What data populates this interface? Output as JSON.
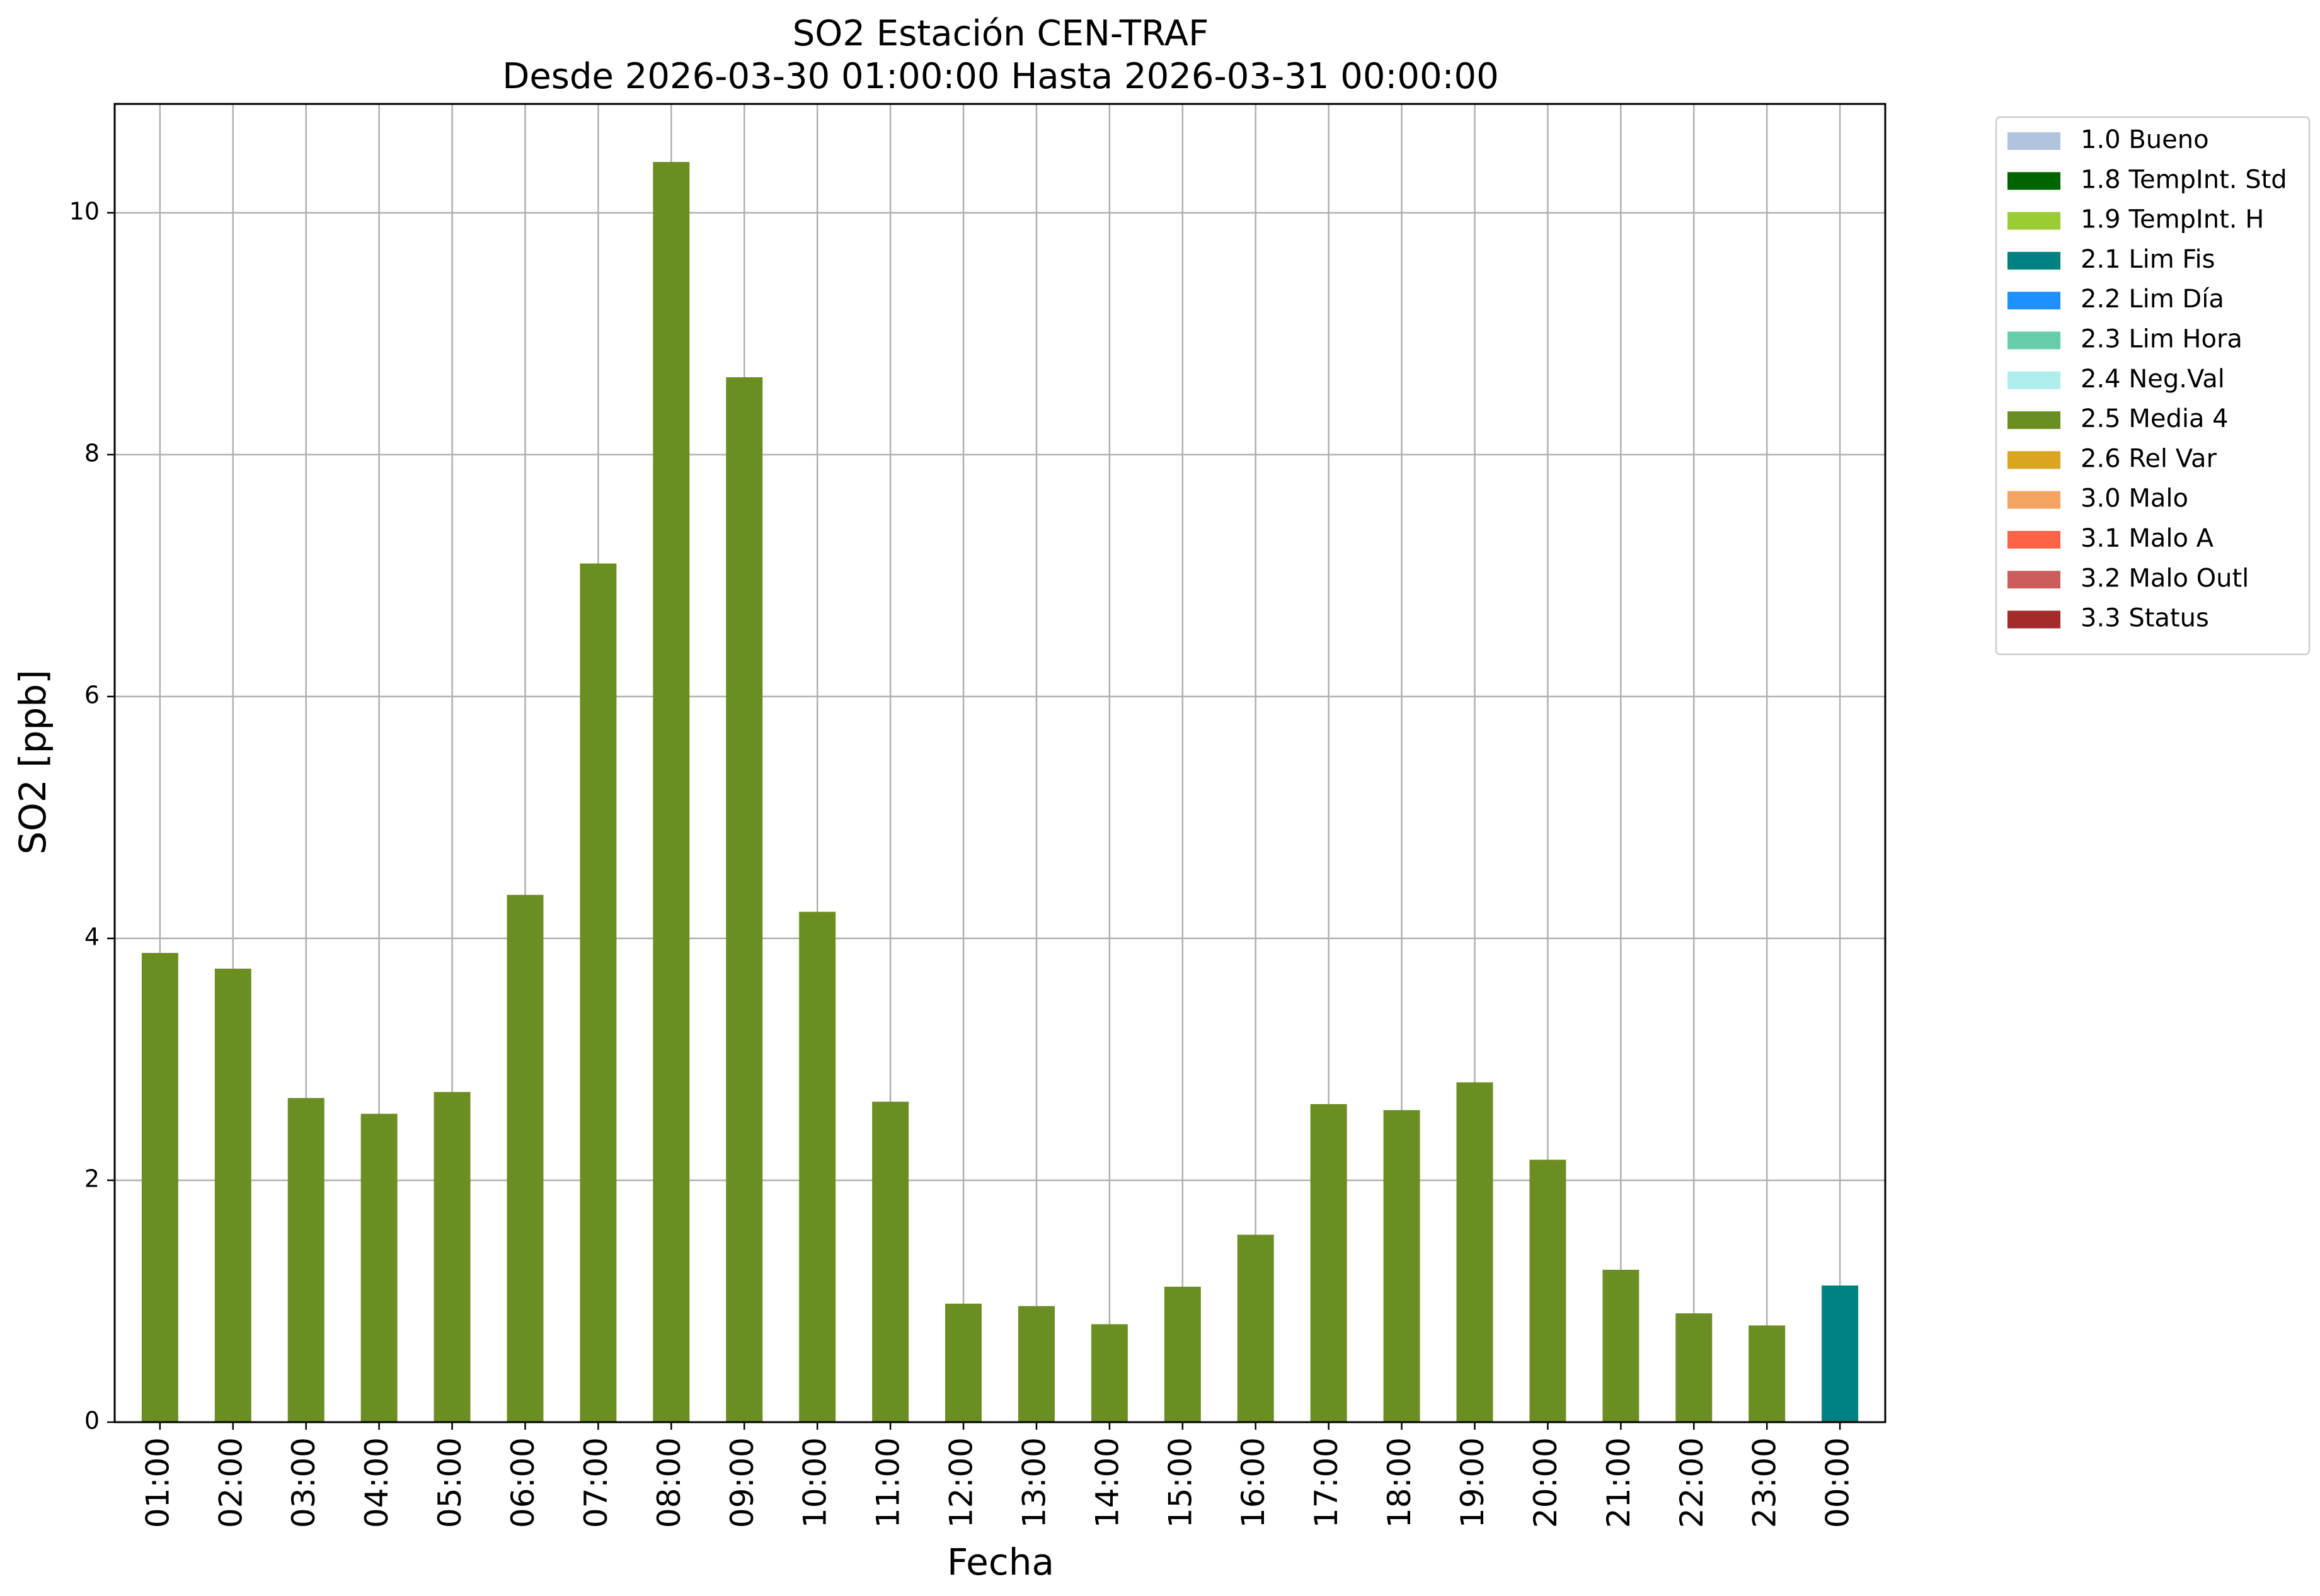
{
  "chart_data": {
    "type": "bar",
    "title": [
      "SO2 Estación CEN-TRAF",
      "Desde 2026-03-30 01:00:00 Hasta 2026-03-31 00:00:00"
    ],
    "xlabel": "Fecha",
    "ylabel": "SO2 [ppb]",
    "ylim": [
      0,
      10.9
    ],
    "yticks": [
      0,
      2,
      4,
      6,
      8,
      10
    ],
    "grid": true,
    "legend_position": "outside-top-right",
    "categories": [
      "01:00",
      "02:00",
      "03:00",
      "04:00",
      "05:00",
      "06:00",
      "07:00",
      "08:00",
      "09:00",
      "10:00",
      "11:00",
      "12:00",
      "13:00",
      "14:00",
      "15:00",
      "16:00",
      "17:00",
      "18:00",
      "19:00",
      "20:00",
      "21:00",
      "22:00",
      "23:00",
      "00:00"
    ],
    "values": [
      3.88,
      3.75,
      2.68,
      2.55,
      2.73,
      4.36,
      7.1,
      10.42,
      8.64,
      4.22,
      2.65,
      0.98,
      0.96,
      0.81,
      1.12,
      1.55,
      2.63,
      2.58,
      2.81,
      2.17,
      1.26,
      0.9,
      0.8,
      1.13
    ],
    "bar_flags": [
      "2.5 Media 4",
      "2.5 Media 4",
      "2.5 Media 4",
      "2.5 Media 4",
      "2.5 Media 4",
      "2.5 Media 4",
      "2.5 Media 4",
      "2.5 Media 4",
      "2.5 Media 4",
      "2.5 Media 4",
      "2.5 Media 4",
      "2.5 Media 4",
      "2.5 Media 4",
      "2.5 Media 4",
      "2.5 Media 4",
      "2.5 Media 4",
      "2.5 Media 4",
      "2.5 Media 4",
      "2.5 Media 4",
      "2.5 Media 4",
      "2.5 Media 4",
      "2.5 Media 4",
      "2.5 Media 4",
      "2.1 Lim Fis"
    ],
    "legend": [
      {
        "label": "1.0 Bueno",
        "color": "#b0c4de"
      },
      {
        "label": "1.8 TempInt. Std",
        "color": "#006400"
      },
      {
        "label": "1.9 TempInt. H",
        "color": "#9acd32"
      },
      {
        "label": "2.1 Lim Fis",
        "color": "#008080"
      },
      {
        "label": "2.2 Lim Día",
        "color": "#1e90ff"
      },
      {
        "label": "2.3 Lim Hora",
        "color": "#66cdaa"
      },
      {
        "label": "2.4 Neg.Val",
        "color": "#afeeee"
      },
      {
        "label": "2.5 Media 4",
        "color": "#6b8e23"
      },
      {
        "label": "2.6 Rel Var",
        "color": "#daa520"
      },
      {
        "label": "3.0 Malo",
        "color": "#f4a460"
      },
      {
        "label": "3.1 Malo A",
        "color": "#ff6347"
      },
      {
        "label": "3.2 Malo Outl",
        "color": "#cd5c5c"
      },
      {
        "label": "3.3 Status",
        "color": "#a52a2a"
      }
    ]
  }
}
